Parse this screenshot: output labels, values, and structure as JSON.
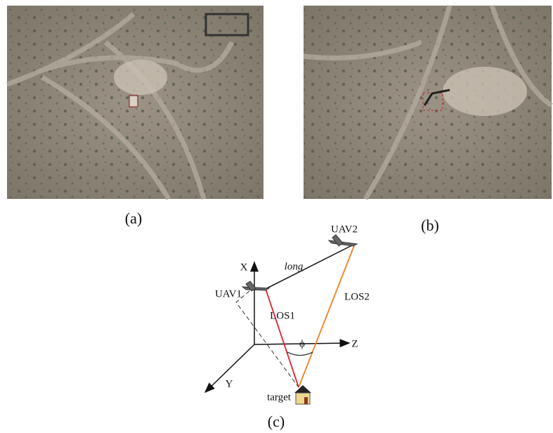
{
  "panels": {
    "a": {
      "caption": "(a)"
    },
    "b": {
      "caption": "(b)"
    }
  },
  "diagram": {
    "caption": "(c)",
    "uav1": "UAV1",
    "uav2": "UAV2",
    "baseline": "long",
    "los1": "LOS1",
    "los2": "LOS2",
    "axis_x": "X",
    "axis_y": "Y",
    "axis_z": "Z",
    "angle": "ϕ",
    "target": "target"
  }
}
